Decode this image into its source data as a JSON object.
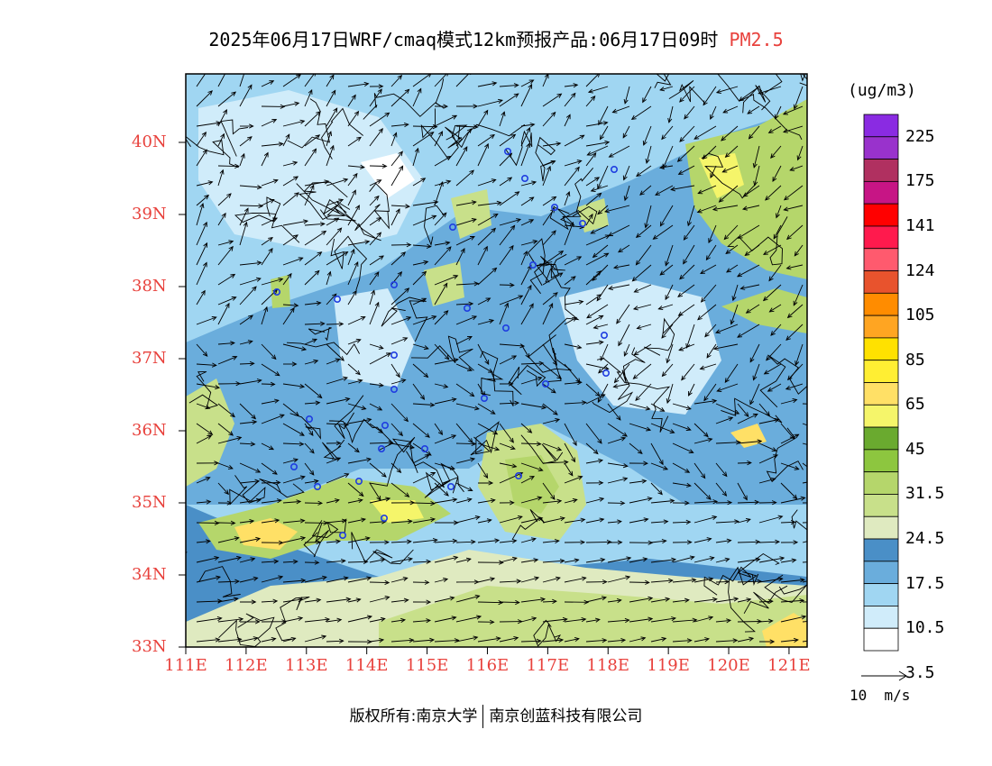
{
  "title": {
    "main": "2025年06月17日WRF/cmaq模式12km预报产品:06月17日09时",
    "species": "PM2.5",
    "species_color": "#e8413c"
  },
  "units": "(ug/m3)",
  "axis": {
    "lat_labels": [
      "33N",
      "34N",
      "35N",
      "36N",
      "37N",
      "38N",
      "39N",
      "40N"
    ],
    "lon_labels": [
      "111E",
      "112E",
      "113E",
      "114E",
      "115E",
      "116E",
      "117E",
      "118E",
      "119E",
      "120E",
      "121E"
    ],
    "label_color": "#e8413c",
    "lat_range": [
      33,
      40.95
    ],
    "lon_range": [
      111,
      121.3
    ]
  },
  "colorbar": {
    "labels": [
      "225",
      "175",
      "141",
      "124",
      "105",
      "85",
      "65",
      "45",
      "31.5",
      "24.5",
      "17.5",
      "10.5",
      "3.5"
    ],
    "colors_top_to_bottom": [
      "#8a2be2",
      "#9932cc",
      "#b03060",
      "#c71585",
      "#ff0000",
      "#ff1a4d",
      "#ff5a6e",
      "#e8532d",
      "#ff8c00",
      "#ffa522",
      "#ffe100",
      "#ffee33",
      "#ffe066",
      "#f5f56a",
      "#6aaa2f",
      "#8dc63f",
      "#b5d66b",
      "#c8e08a",
      "#dfeac0",
      "#4a8fc7",
      "#6aaddc",
      "#a0d6f2",
      "#d0ecfa",
      "#ffffff"
    ]
  },
  "wind_reference": "10  m/s",
  "footer": {
    "left": "版权所有:南京大学",
    "right": "南京创蓝科技有限公司"
  }
}
